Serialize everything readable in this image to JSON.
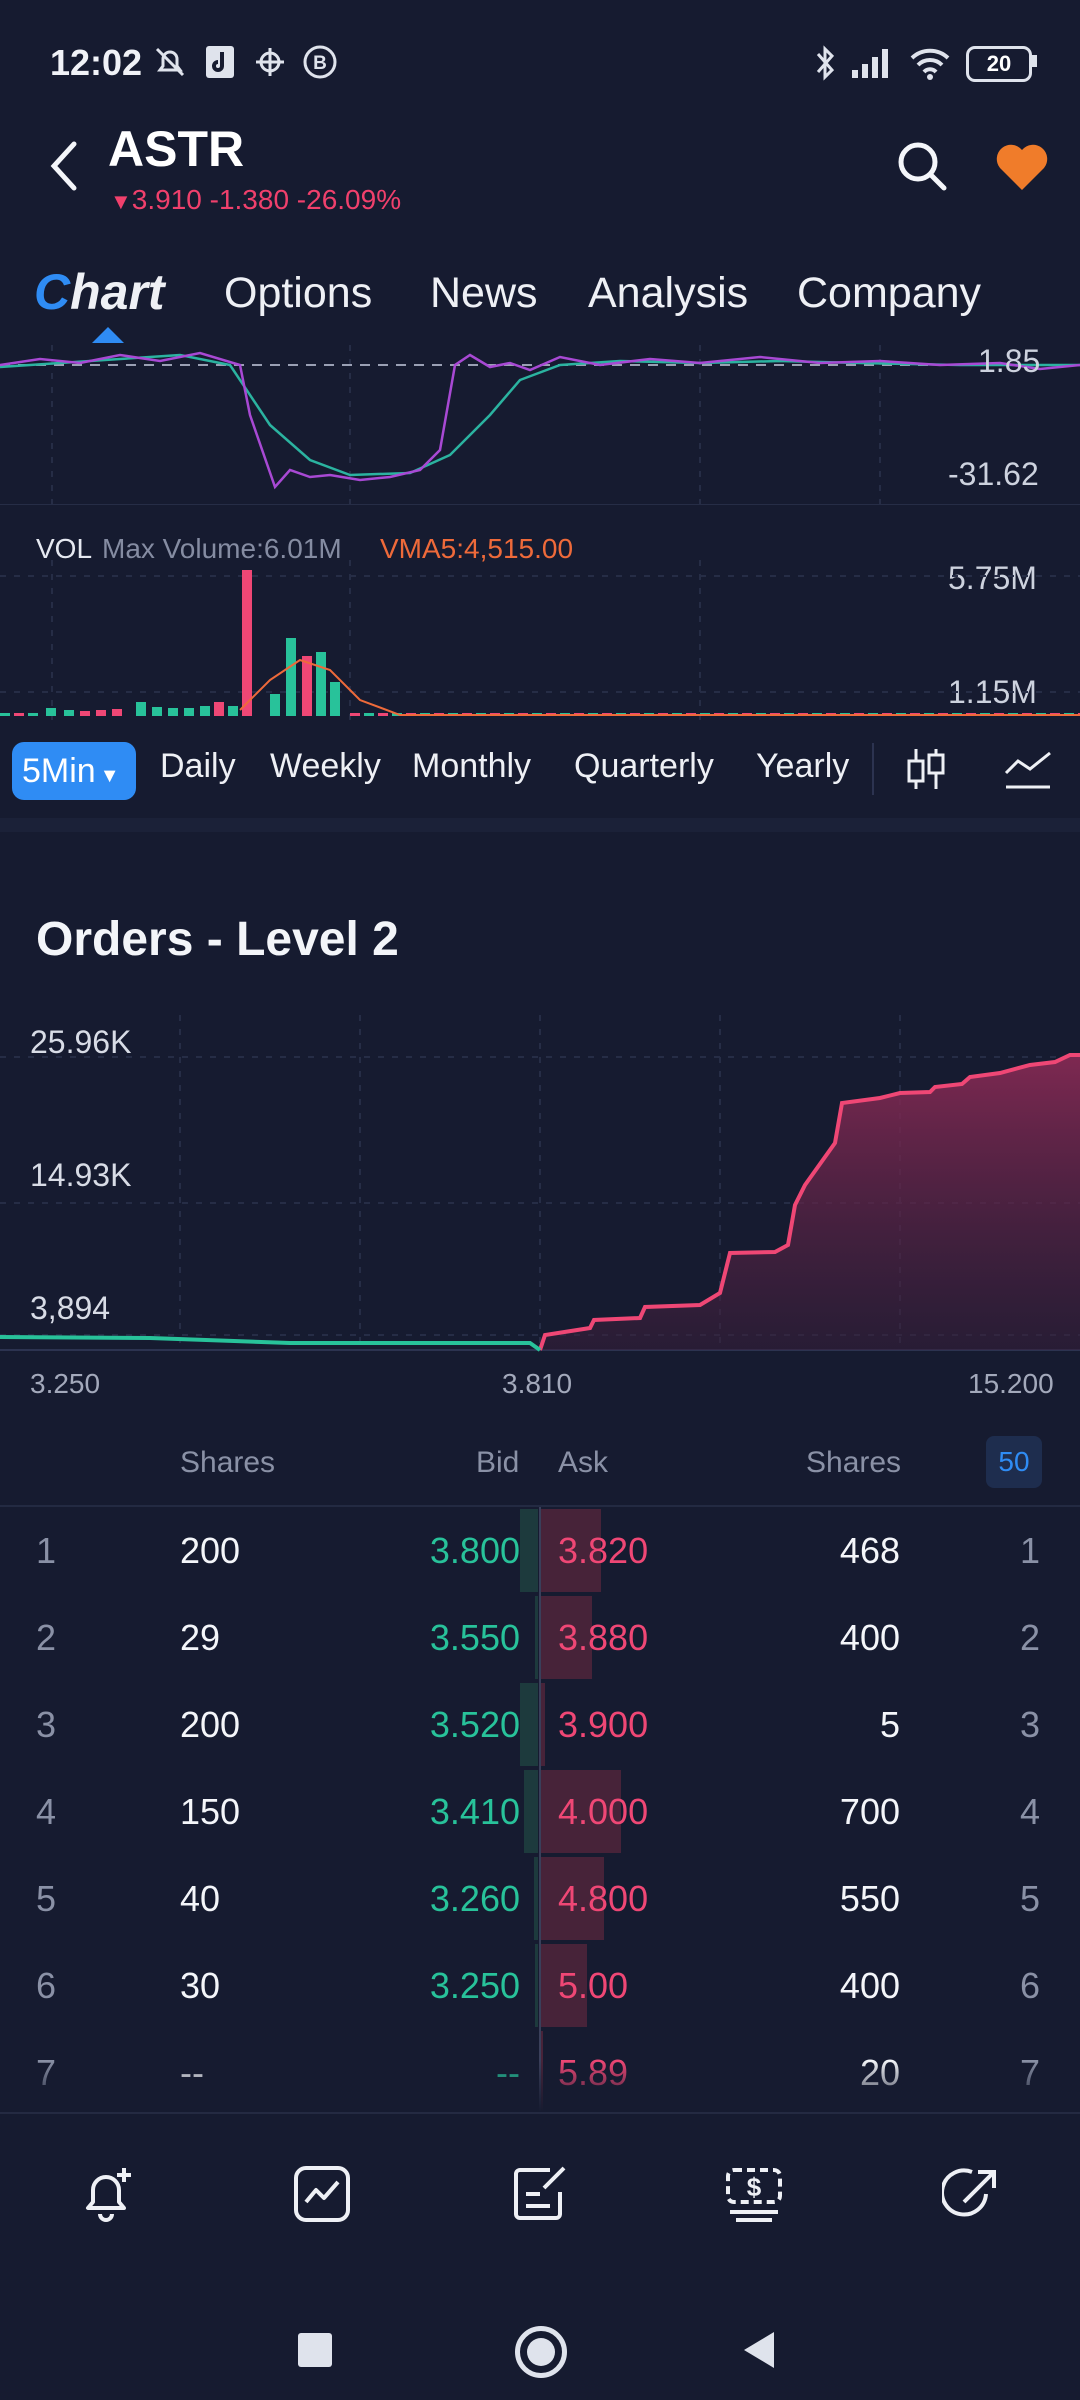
{
  "status_bar": {
    "time": "12:02",
    "battery": "20",
    "icons": [
      "mute-bell-icon",
      "app-icon",
      "settings-bug-icon",
      "b-circle-icon",
      "bluetooth-icon",
      "signal-icon",
      "wifi-icon",
      "battery-icon"
    ]
  },
  "header": {
    "ticker": "ASTR",
    "quote": "3.910 -1.380 -26.09%",
    "quote_color": "#f0406c",
    "favorite_color": "#f07c2a"
  },
  "tabs": [
    {
      "label": "Chart",
      "active": true
    },
    {
      "label": "Options"
    },
    {
      "label": "News"
    },
    {
      "label": "Analysis"
    },
    {
      "label": "Company"
    }
  ],
  "indicator": {
    "upper_value": "1.85",
    "lower_value": "-31.62"
  },
  "volume": {
    "prefix": "VOL",
    "max_volume": "Max Volume:6.01M",
    "vma": "VMA5:4,515.00",
    "upper_tick": "5.75M",
    "lower_tick": "1.15M"
  },
  "periods": {
    "active": "5Min",
    "items": [
      "Daily",
      "Weekly",
      "Monthly",
      "Quarterly",
      "Yearly"
    ]
  },
  "level2": {
    "title": "Orders - Level 2",
    "y_ticks": [
      "25.96K",
      "14.93K",
      "3,894"
    ],
    "x_ticks": [
      "3.250",
      "3.810",
      "15.200"
    ],
    "headers": {
      "shares_bid": "Shares",
      "bid": "Bid",
      "ask": "Ask",
      "shares_ask": "Shares",
      "depth": "50"
    },
    "rows": [
      {
        "i": "1",
        "bid_shares": "200",
        "bid": "3.800",
        "ask": "3.820",
        "ask_shares": "468",
        "j": "1",
        "bid_fill": 0.7,
        "ask_fill": 0.75
      },
      {
        "i": "2",
        "bid_shares": "29",
        "bid": "3.550",
        "ask": "3.880",
        "ask_shares": "400",
        "j": "2",
        "bid_fill": 0.1,
        "ask_fill": 0.64
      },
      {
        "i": "3",
        "bid_shares": "200",
        "bid": "3.520",
        "ask": "3.900",
        "ask_shares": "5",
        "j": "3",
        "bid_fill": 0.7,
        "ask_fill": 0.05
      },
      {
        "i": "4",
        "bid_shares": "150",
        "bid": "3.410",
        "ask": "4.000",
        "ask_shares": "700",
        "j": "4",
        "bid_fill": 0.53,
        "ask_fill": 1.0
      },
      {
        "i": "5",
        "bid_shares": "40",
        "bid": "3.260",
        "ask": "4.800",
        "ask_shares": "550",
        "j": "5",
        "bid_fill": 0.14,
        "ask_fill": 0.79
      },
      {
        "i": "6",
        "bid_shares": "30",
        "bid": "3.250",
        "ask": "5.00",
        "ask_shares": "400",
        "j": "6",
        "bid_fill": 0.11,
        "ask_fill": 0.57
      },
      {
        "i": "7",
        "bid_shares": "--",
        "bid": "--",
        "ask": "5.89",
        "ask_shares": "20",
        "j": "7",
        "bid_fill": 0.0,
        "ask_fill": 0.03
      }
    ]
  },
  "bottom_nav": [
    "alert-add-icon",
    "chart-icon",
    "note-edit-icon",
    "trade-dollar-icon",
    "share-icon"
  ],
  "colors": {
    "bid_green": "#28c29a",
    "ask_red": "#ef4775",
    "accent": "#2f8cf4",
    "background": "#161b30"
  }
}
